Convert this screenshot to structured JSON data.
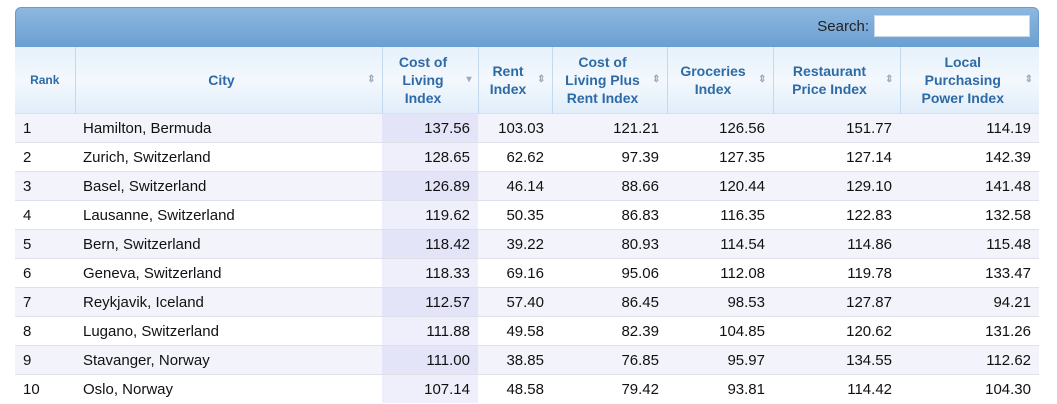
{
  "search": {
    "label": "Search:",
    "value": ""
  },
  "columns": [
    "Rank",
    "City",
    "Cost of Living Index",
    "Rent Index",
    "Cost of Living Plus Rent Index",
    "Groceries Index",
    "Restaurant Price Index",
    "Local Purchasing Power Index"
  ],
  "sorted_column": "Cost of Living Index",
  "rows": [
    [
      "1",
      "Hamilton, Bermuda",
      "137.56",
      "103.03",
      "121.21",
      "126.56",
      "151.77",
      "114.19"
    ],
    [
      "2",
      "Zurich, Switzerland",
      "128.65",
      "62.62",
      "97.39",
      "127.35",
      "127.14",
      "142.39"
    ],
    [
      "3",
      "Basel, Switzerland",
      "126.89",
      "46.14",
      "88.66",
      "120.44",
      "129.10",
      "141.48"
    ],
    [
      "4",
      "Lausanne, Switzerland",
      "119.62",
      "50.35",
      "86.83",
      "116.35",
      "122.83",
      "132.58"
    ],
    [
      "5",
      "Bern, Switzerland",
      "118.42",
      "39.22",
      "80.93",
      "114.54",
      "114.86",
      "115.48"
    ],
    [
      "6",
      "Geneva, Switzerland",
      "118.33",
      "69.16",
      "95.06",
      "112.08",
      "119.78",
      "133.47"
    ],
    [
      "7",
      "Reykjavik, Iceland",
      "112.57",
      "57.40",
      "86.45",
      "98.53",
      "127.87",
      "94.21"
    ],
    [
      "8",
      "Lugano, Switzerland",
      "111.88",
      "49.58",
      "82.39",
      "104.85",
      "120.62",
      "131.26"
    ],
    [
      "9",
      "Stavanger, Norway",
      "111.00",
      "38.85",
      "76.85",
      "95.97",
      "134.55",
      "112.62"
    ],
    [
      "10",
      "Oslo, Norway",
      "107.14",
      "48.58",
      "79.42",
      "93.81",
      "114.42",
      "104.30"
    ]
  ]
}
